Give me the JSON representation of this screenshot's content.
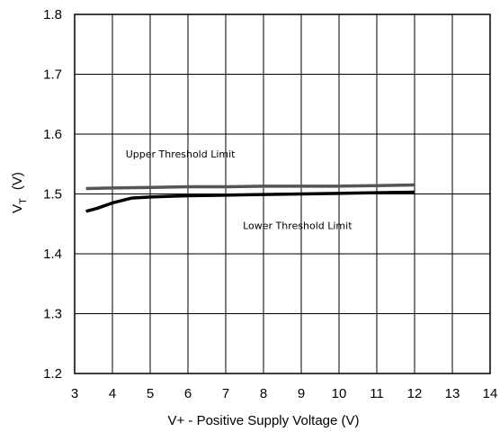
{
  "chart_data": {
    "type": "line",
    "title": "",
    "xlabel": "V+ - Positive Supply Voltage (V)",
    "ylabel": {
      "main": "V",
      "subscript": "T",
      "unit": "(V)"
    },
    "xlim": [
      3,
      14
    ],
    "ylim": [
      1.2,
      1.8
    ],
    "x_ticks": [
      "3",
      "4",
      "5",
      "6",
      "7",
      "8",
      "9",
      "10",
      "11",
      "12",
      "13",
      "14"
    ],
    "y_ticks": [
      "1.2",
      "1.3",
      "1.4",
      "1.5",
      "1.6",
      "1.7",
      "1.8"
    ],
    "grid": true,
    "series": [
      {
        "name": "Upper Threshold Limit",
        "color": "#555555",
        "x": [
          3.3,
          4,
          5,
          6,
          7,
          8,
          9,
          10,
          11,
          12
        ],
        "y": [
          1.509,
          1.51,
          1.511,
          1.512,
          1.512,
          1.513,
          1.513,
          1.513,
          1.514,
          1.515
        ]
      },
      {
        "name": "Lower Threshold Limit",
        "color": "#000000",
        "x": [
          3.3,
          3.6,
          4,
          4.5,
          5,
          5.5,
          6,
          7,
          8,
          9,
          10,
          11,
          12
        ],
        "y": [
          1.471,
          1.476,
          1.485,
          1.493,
          1.495,
          1.496,
          1.497,
          1.498,
          1.499,
          1.5,
          1.501,
          1.502,
          1.503
        ]
      }
    ],
    "annotations": [
      {
        "text": "Upper Threshold Limit",
        "at": [
          5.8,
          1.561
        ]
      },
      {
        "text": "Lower Threshold Limit",
        "at": [
          8.9,
          1.441
        ]
      }
    ]
  }
}
